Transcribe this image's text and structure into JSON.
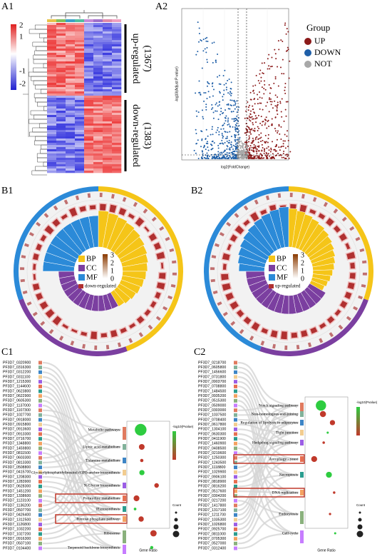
{
  "panels": {
    "a1": {
      "label": "A1",
      "colorbar_ticks": [
        "2",
        "1",
        "-1",
        "-2"
      ],
      "up": "up-regulated",
      "up_count": "(1367)",
      "down": "down-regulated",
      "down_count": "(1383)"
    },
    "a2": {
      "label": "A2",
      "x_label": "log2(FoldChange)",
      "y_label": "-log10(Adjust P-value)",
      "legend_title": "Group",
      "legend": [
        {
          "name": "UP",
          "color": "#8b1a1a"
        },
        {
          "name": "DOWN",
          "color": "#1f5fa8"
        },
        {
          "name": "NOT",
          "color": "#a8a8a8"
        }
      ]
    },
    "b1": {
      "label": "B1",
      "legend": [
        {
          "name": "BP",
          "color": "#f5c518"
        },
        {
          "name": "CC",
          "color": "#7b3fa0"
        },
        {
          "name": "MF",
          "color": "#2b8ad8"
        }
      ],
      "scale": [
        "3",
        "2",
        "1",
        "0"
      ],
      "note": "down-regulated"
    },
    "b2": {
      "label": "B2",
      "legend": [
        {
          "name": "BP",
          "color": "#f5c518"
        },
        {
          "name": "CC",
          "color": "#7b3fa0"
        },
        {
          "name": "MF",
          "color": "#2b8ad8"
        }
      ],
      "scale": [
        "3",
        "2",
        "1",
        "0"
      ],
      "note": "up-regulated"
    },
    "c1": {
      "label": "C1",
      "x_label": "Gene Ratio",
      "legend_title": "-log10(Pvalue)",
      "size_title": "Count",
      "pathways": [
        "Metabolic pathways",
        "Lipoic acid metabolism",
        "Thiamine metabolism",
        "Glycosylphosphatidylinositol (GPI)-anchor biosynthesis",
        "N-Glycan biosynthesis",
        "Pyrimidine metabolism",
        "Photosynthesis",
        "Pentose phosphate pathway",
        "Ribosome",
        "Terpenoid backbone biosynthesis"
      ],
      "genes": [
        "PF3D7_0320900",
        "PF3D7_0316300",
        "PF3D7_0312200",
        "PF3D7_0311100",
        "PF3D7_1215300",
        "PF3D7_1144600",
        "PF3D7_0623800",
        "PF3D7_0622900",
        "PF3D7_0605300",
        "PF3D7_1137000",
        "PF3D7_1107300",
        "PF3D7_1027700",
        "PF3D7_0918000",
        "PF3D7_0915800",
        "PF3D7_0913600",
        "PF3D7_0913300",
        "PF3D7_0716700",
        "PF3D7_1348800",
        "PF3D7_1459800",
        "PF3D7_0811500",
        "PF3D7_0603300",
        "PF3D7_0813300",
        "PF3D7_0508800",
        "PF3D7_0415700",
        "PF3D7_1208300",
        "PF3D7_1283900",
        "PF3D7_0628300",
        "PF3D7_1451200",
        "PF3D7_1338600",
        "PF3D7_1123100",
        "PF3D7_1136200",
        "PF3D7_0507700",
        "PF3D7_0426400",
        "PF3D7_1312500",
        "PF3D7_1126800",
        "PF3D7_1032200",
        "PF3D7_1027200",
        "PF3D7_0916300",
        "PF3D7_0507100",
        "PF3D7_0104400"
      ]
    },
    "c2": {
      "label": "C2",
      "x_label": "Gene Ratio",
      "legend_title": "-log10(Pvalue)",
      "size_title": "Count",
      "pathways": [
        "Notch signaling pathway",
        "Non-homologous end-joining",
        "Regulation of lipolysis in adipocytes",
        "Tight junction",
        "Hedgehog signaling pathway",
        "Autophagy - yeast",
        "Necroptosis",
        "DNA replication",
        "Endocytosis",
        "Cell cycle"
      ],
      "genes": [
        "PF3D7_0218700",
        "PF3D7_0605800",
        "PF3D7_1456600",
        "PF3D7_0731800",
        "PF3D7_0903700",
        "PF3D7_0708800",
        "PF3D7_1484500",
        "PF3D7_0935200",
        "PF3D7_0515300",
        "PF3D7_0509000",
        "PF3D7_0303000",
        "PF3D7_1037500",
        "PF3D7_0708400",
        "PF3D7_0617800",
        "PF3D7_1304100",
        "PF3D7_0630300",
        "PF3D7_0411900",
        "PF3D7_1460900",
        "PF3D7_0408500",
        "PF3D7_0219600",
        "PF3D7_1250300",
        "PF3D7_1243500",
        "PF3D7_1118800",
        "PF3D7_1029900",
        "PF3D7_0906100",
        "PF3D7_0818900",
        "PF3D7_0816200",
        "PF3D7_0517600",
        "PF3D7_0304200",
        "PF3D7_0217200",
        "PF3D7_1417800",
        "PF3D7_1317100",
        "PF3D7_1211700",
        "PF3D7_1035300",
        "PF3D7_1026800",
        "PF3D7_0925700",
        "PF3D7_0811000",
        "PF3D7_0705300",
        "PF3D7_0527000",
        "PF3D7_0312400"
      ]
    }
  }
}
